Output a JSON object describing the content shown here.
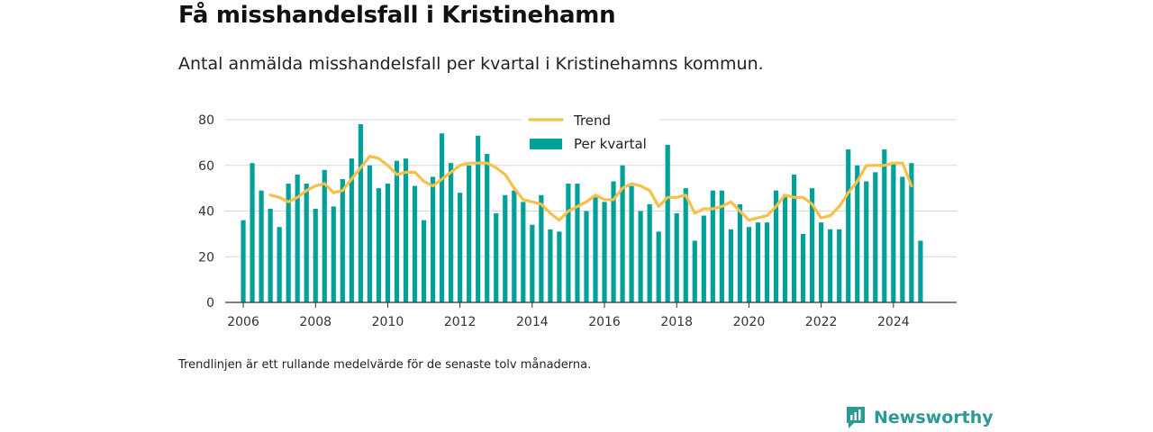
{
  "title": "Få misshandelsfall i Kristinehamn",
  "subtitle": "Antal anmälda misshandelsfall per kvartal i Kristinehamns kommun.",
  "footnote": "Trendlinjen är ett rullande medelvärde för de senaste tolv månaderna.",
  "brand": {
    "name": "Newsworthy",
    "icon": "newsworthy-logo-icon"
  },
  "colors": {
    "bar": "#00a19a",
    "trend": "#f7c04a",
    "grid": "#d9d9d9",
    "axis": "#333333"
  },
  "chart_data": {
    "type": "bar",
    "xlim": [
      2005.5,
      2025.75
    ],
    "ylim": [
      0,
      80
    ],
    "yticks": [
      0,
      20,
      40,
      60,
      80
    ],
    "xticks": [
      2006,
      2008,
      2010,
      2012,
      2014,
      2016,
      2018,
      2020,
      2022,
      2024
    ],
    "grid": true,
    "legend": {
      "placement": "top-center",
      "entries": [
        "Trend",
        "Per kvartal"
      ]
    },
    "series": [
      {
        "name": "Per kvartal",
        "type": "bar",
        "x_start": "2006Q1",
        "values": [
          36,
          61,
          49,
          41,
          33,
          52,
          56,
          52,
          41,
          58,
          42,
          54,
          63,
          78,
          60,
          50,
          52,
          62,
          63,
          51,
          36,
          55,
          74,
          61,
          48,
          60,
          73,
          65,
          39,
          47,
          49,
          44,
          34,
          47,
          32,
          31,
          52,
          52,
          40,
          46,
          44,
          53,
          60,
          51,
          40,
          43,
          31,
          69,
          39,
          50,
          27,
          38,
          49,
          49,
          32,
          43,
          33,
          35,
          35,
          49,
          47,
          56,
          30,
          50,
          35,
          32,
          32,
          67,
          60,
          53,
          57,
          67,
          61,
          55,
          61,
          27
        ]
      },
      {
        "name": "Trend",
        "type": "line",
        "x_start": "2006Q4",
        "values": [
          47,
          46,
          44,
          46,
          49,
          51,
          52,
          48,
          49,
          54,
          59,
          64,
          63,
          60,
          56,
          57,
          57,
          53,
          51,
          54,
          57,
          60,
          61,
          61,
          61,
          59,
          56,
          50,
          45,
          44,
          43,
          39,
          36,
          40,
          42,
          44,
          47,
          45,
          45,
          50,
          52,
          51,
          49,
          42,
          46,
          46,
          47,
          39,
          41,
          41,
          42,
          44,
          40,
          36,
          37,
          38,
          42,
          47,
          46,
          46,
          43,
          37,
          38,
          42,
          48,
          53,
          60,
          60,
          60,
          61,
          61,
          51
        ]
      }
    ]
  }
}
